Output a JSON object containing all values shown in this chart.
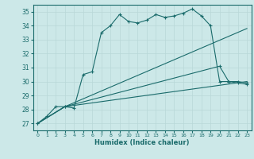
{
  "xlabel": "Humidex (Indice chaleur)",
  "ylabel": "",
  "bg_color": "#cce8e8",
  "grid_color": "#b8d8d8",
  "line_color": "#1a6b6b",
  "xlim": [
    -0.5,
    23.5
  ],
  "ylim": [
    26.5,
    35.5
  ],
  "yticks": [
    27,
    28,
    29,
    30,
    31,
    32,
    33,
    34,
    35
  ],
  "xticks": [
    0,
    1,
    2,
    3,
    4,
    5,
    6,
    7,
    8,
    9,
    10,
    11,
    12,
    13,
    14,
    15,
    16,
    17,
    18,
    19,
    20,
    21,
    22,
    23
  ],
  "lines": [
    {
      "x": [
        0,
        1,
        2,
        3,
        4,
        5,
        6,
        7,
        8,
        9,
        10,
        11,
        12,
        13,
        14,
        15,
        16,
        17,
        18,
        19,
        20,
        21,
        22,
        23
      ],
      "y": [
        27.0,
        27.5,
        28.2,
        28.2,
        28.1,
        30.5,
        30.7,
        33.5,
        34.0,
        34.8,
        34.3,
        34.2,
        34.4,
        34.8,
        34.6,
        34.7,
        34.9,
        35.2,
        34.7,
        34.0,
        30.0,
        30.0,
        29.9,
        29.8
      ],
      "marker": "+"
    },
    {
      "x": [
        0,
        3,
        23
      ],
      "y": [
        27.0,
        28.2,
        33.8
      ],
      "marker": null
    },
    {
      "x": [
        0,
        3,
        20,
        21,
        22,
        23
      ],
      "y": [
        27.0,
        28.2,
        31.1,
        30.0,
        30.0,
        29.9
      ],
      "marker": "+"
    },
    {
      "x": [
        0,
        3,
        23
      ],
      "y": [
        27.0,
        28.2,
        30.0
      ],
      "marker": null
    }
  ]
}
